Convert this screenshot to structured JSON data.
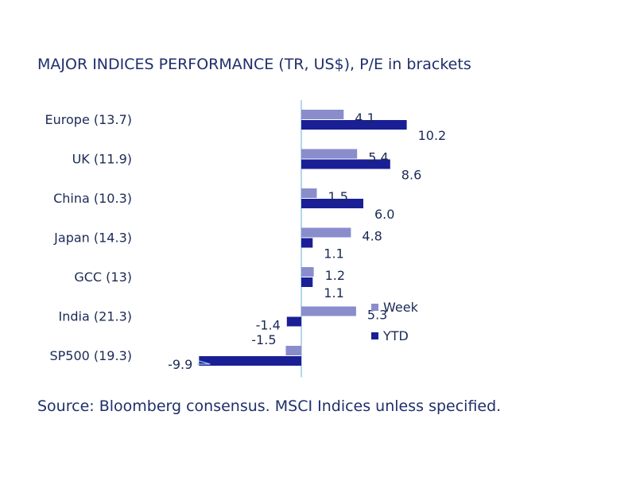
{
  "title": "MAJOR INDICES PERFORMANCE (TR, US$), P/E in brackets",
  "source": "Source: Bloomberg consensus. MSCI Indices unless specified.",
  "colors": {
    "week": "#8a8dcc",
    "ytd": "#1a1f96",
    "axis": "#9cc7e8"
  },
  "chart_data": {
    "type": "bar",
    "orientation": "horizontal",
    "categories": [
      "Europe (13.7)",
      "UK (11.9)",
      "China (10.3)",
      "Japan (14.3)",
      "GCC (13)",
      "India (21.3)",
      "SP500 (19.3)"
    ],
    "series": [
      {
        "name": "Week",
        "values": [
          4.1,
          5.4,
          1.5,
          4.8,
          1.2,
          5.3,
          -1.5
        ]
      },
      {
        "name": "YTD",
        "values": [
          10.2,
          8.6,
          6.0,
          1.1,
          1.1,
          -1.4,
          -9.9
        ]
      }
    ],
    "legend": "right",
    "grid": false
  }
}
